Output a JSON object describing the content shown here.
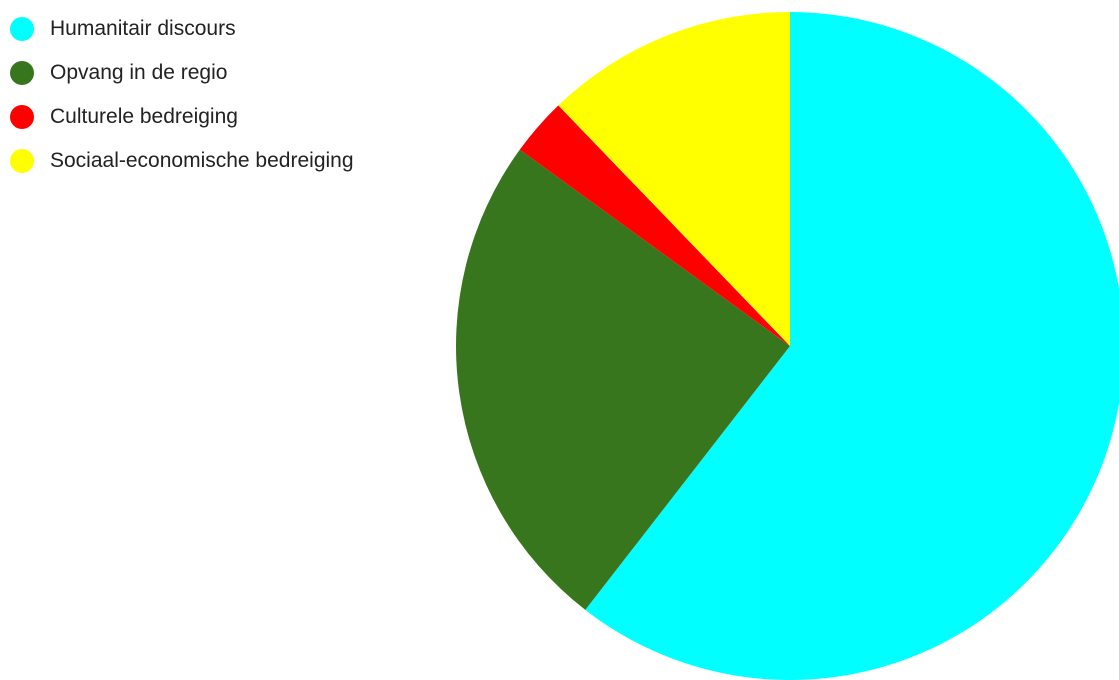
{
  "chart_data": {
    "type": "pie",
    "title": "",
    "legend_position": "top-left",
    "slices": [
      {
        "label": "Humanitair discours",
        "value": 60.5,
        "color": "#00ffff"
      },
      {
        "label": "Opvang in de regio",
        "value": 24.5,
        "color": "#38761d"
      },
      {
        "label": "Culturele bedreiging",
        "value": 2.8,
        "color": "#ff0000"
      },
      {
        "label": "Sociaal-economische bedreiging",
        "value": 12.2,
        "color": "#ffff00"
      }
    ]
  }
}
